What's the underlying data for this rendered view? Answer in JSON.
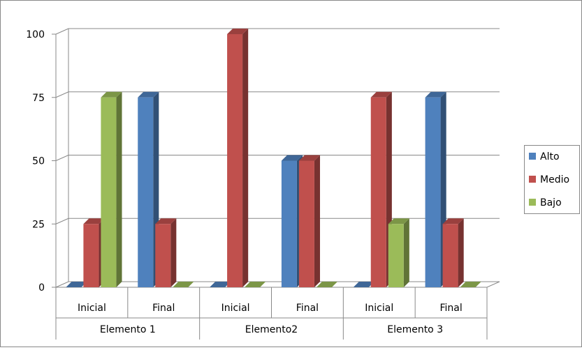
{
  "chart_data": {
    "type": "bar",
    "subtype": "3d-clustered-column",
    "groups": [
      "Elemento 1",
      "Elemento2",
      "Elemento 3"
    ],
    "categories": [
      "Inicial",
      "Final",
      "Inicial",
      "Final",
      "Inicial",
      "Final"
    ],
    "series": [
      {
        "name": "Alto",
        "color": "#4F81BD",
        "values": [
          0,
          75,
          0,
          50,
          0,
          75
        ]
      },
      {
        "name": "Medio",
        "color": "#C0504D",
        "values": [
          25,
          25,
          100,
          50,
          75,
          25
        ]
      },
      {
        "name": "Bajo",
        "color": "#9BBB59",
        "values": [
          75,
          0,
          0,
          0,
          25,
          0
        ]
      }
    ],
    "yticks": [
      0,
      25,
      50,
      75,
      100
    ],
    "ylim": [
      0,
      100
    ],
    "grid": true,
    "legend_position": "right"
  }
}
